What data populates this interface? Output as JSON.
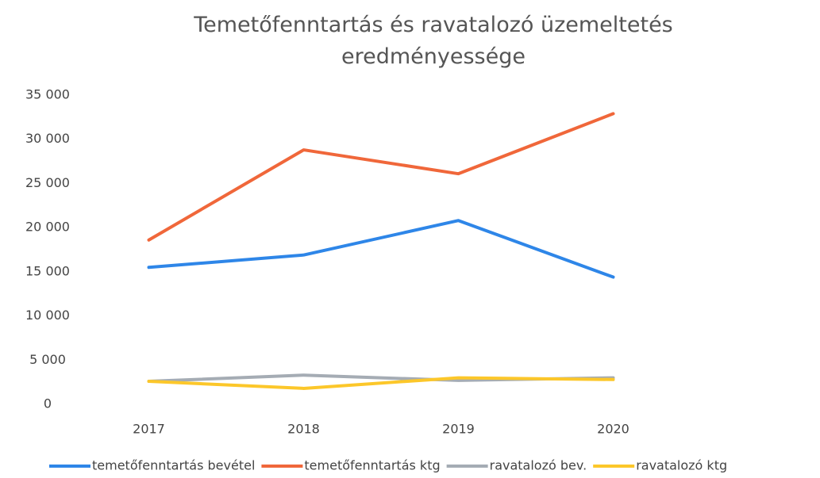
{
  "chart_data": {
    "type": "line",
    "title": "Temetőfenntartás és ravatalozó üzemeltetés eredményessége",
    "categories": [
      "2017",
      "2018",
      "2019",
      "2020"
    ],
    "series": [
      {
        "name": "temetőfenntartás bevétel",
        "color": "#2e86e8",
        "values": [
          15500,
          16900,
          20800,
          14400
        ]
      },
      {
        "name": "temetőfenntartás ktg",
        "color": "#f0673a",
        "values": [
          18600,
          28800,
          26100,
          32900
        ]
      },
      {
        "name": "ravatalozó bev.",
        "color": "#a5acb4",
        "values": [
          2600,
          3300,
          2700,
          3000
        ]
      },
      {
        "name": "ravatalozó ktg",
        "color": "#fcc72a",
        "values": [
          2600,
          1800,
          3000,
          2800
        ]
      }
    ],
    "ylim": [
      0,
      35000
    ],
    "yticks": [
      0,
      {
        "value": 5000,
        "label": "5 000"
      },
      {
        "value": 10000,
        "label": "10 000"
      },
      {
        "value": 15000,
        "label": "15 000"
      },
      {
        "value": 20000,
        "label": "20 000"
      },
      {
        "value": 25000,
        "label": "25 000"
      },
      {
        "value": 30000,
        "label": "30 000"
      },
      {
        "value": 35000,
        "label": "35 000"
      }
    ],
    "grid": false,
    "legend": "bottom"
  }
}
